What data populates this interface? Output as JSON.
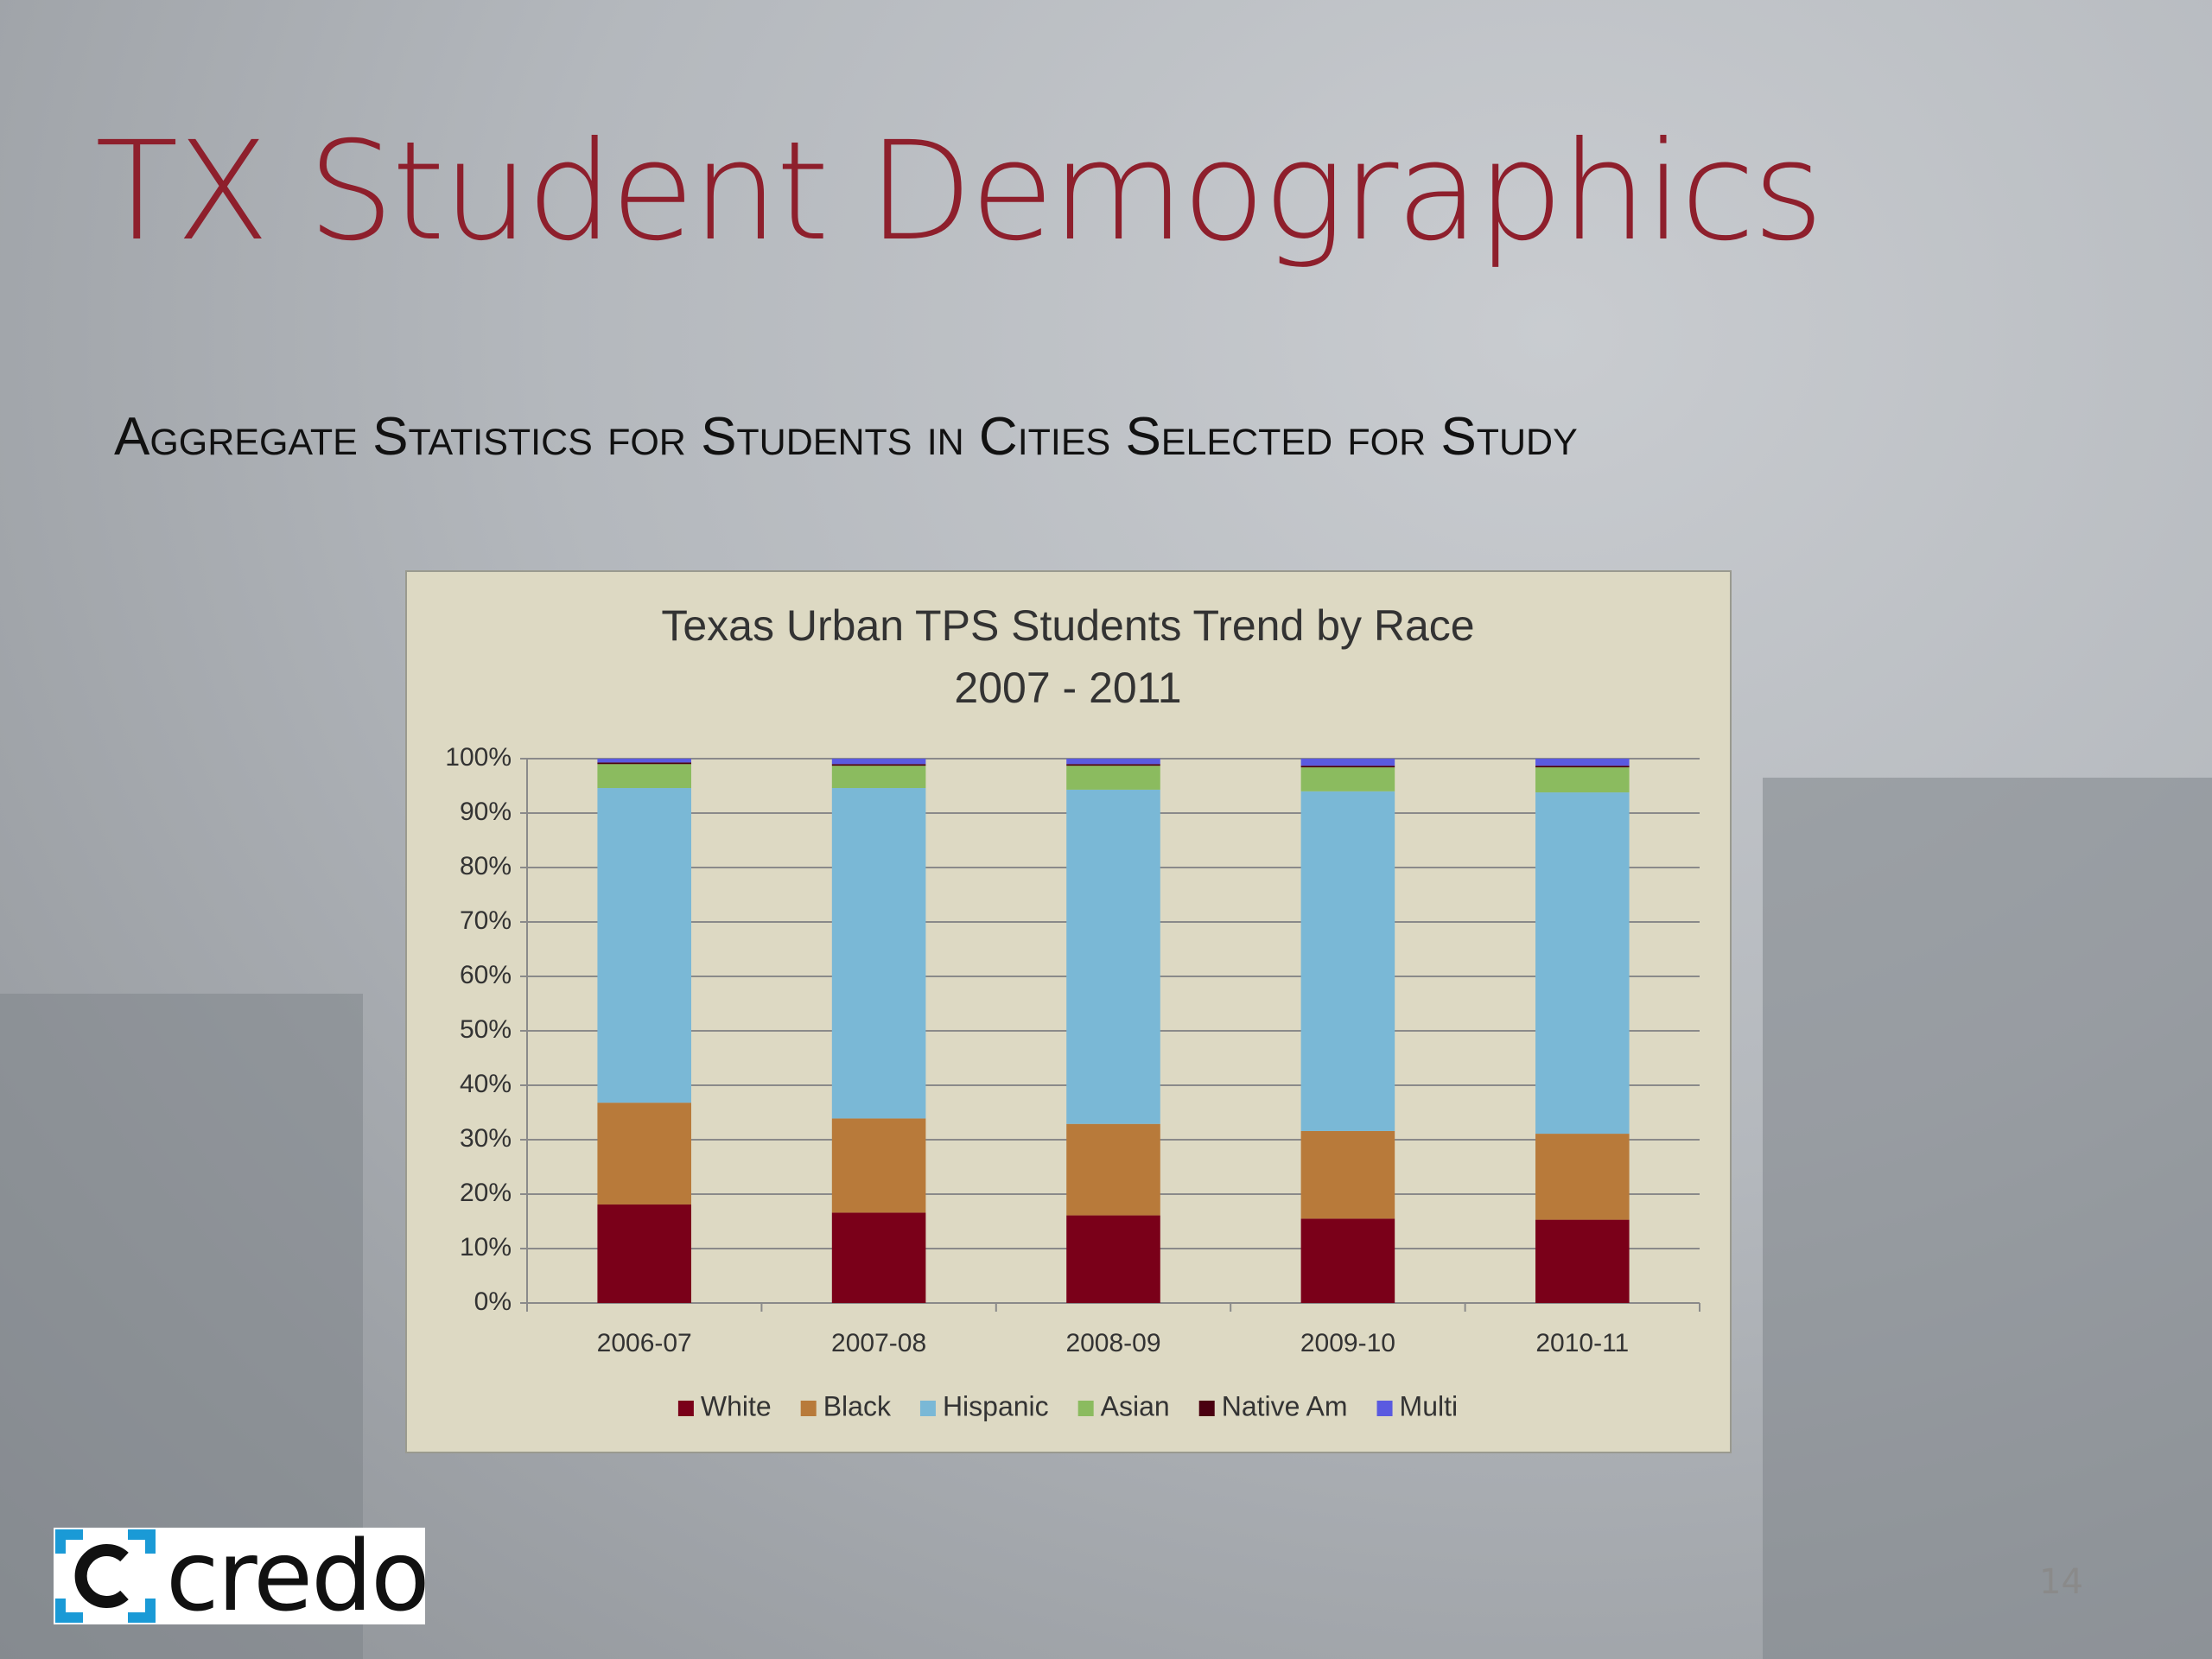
{
  "slide_title": "TX Student Demographics",
  "subtitle": "Aggregate Statistics for Students in Cities Selected for Study",
  "logo": "credo",
  "page_number": "14",
  "chart_data": {
    "type": "stacked_bar",
    "title": [
      "Texas Urban TPS Students Trend by Race",
      "2007 - 2011"
    ],
    "categories": [
      "2006-07",
      "2007-08",
      "2008-09",
      "2009-10",
      "2010-11"
    ],
    "series": [
      {
        "name": "White",
        "color": "#7a0019",
        "values": [
          18.1,
          16.6,
          16.1,
          15.5,
          15.3
        ]
      },
      {
        "name": "Black",
        "color": "#b87a3a",
        "values": [
          18.7,
          17.3,
          16.8,
          16.1,
          15.8
        ]
      },
      {
        "name": "Hispanic",
        "color": "#7ab8d6",
        "values": [
          57.8,
          60.7,
          61.4,
          62.4,
          62.7
        ]
      },
      {
        "name": "Asian",
        "color": "#8bbb5f",
        "values": [
          4.4,
          4.1,
          4.4,
          4.4,
          4.6
        ]
      },
      {
        "name": "Native Am",
        "color": "#4a0010",
        "values": [
          0.3,
          0.3,
          0.3,
          0.3,
          0.3
        ]
      },
      {
        "name": "Multi",
        "color": "#5a5ae0",
        "values": [
          0.7,
          1.0,
          1.0,
          1.3,
          1.3
        ]
      }
    ],
    "ylim": [
      0,
      100
    ],
    "yticks": [
      {
        "value": 0,
        "label": "0%"
      },
      {
        "value": 10,
        "label": "10%"
      },
      {
        "value": 20,
        "label": "20%"
      },
      {
        "value": 30,
        "label": "30%"
      },
      {
        "value": 40,
        "label": "40%"
      },
      {
        "value": 50,
        "label": "50%"
      },
      {
        "value": 60,
        "label": "60%"
      },
      {
        "value": 70,
        "label": "70%"
      },
      {
        "value": 80,
        "label": "80%"
      },
      {
        "value": 90,
        "label": "90%"
      },
      {
        "value": 100,
        "label": "100%"
      }
    ],
    "grid": true,
    "legend": "bottom"
  }
}
